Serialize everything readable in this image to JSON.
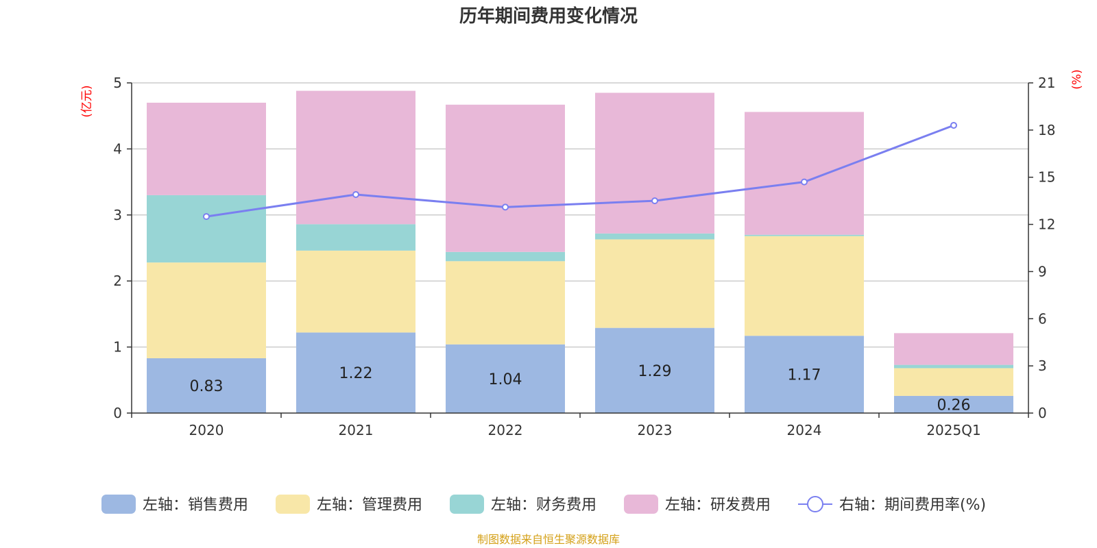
{
  "chart_data": {
    "type": "bar",
    "title": "历年期间费用变化情况",
    "categories": [
      "2020",
      "2021",
      "2022",
      "2023",
      "2024",
      "2025Q1"
    ],
    "left_axis": {
      "unit": "(亿元)",
      "ylim": [
        0,
        5
      ],
      "ticks": [
        "0",
        "1",
        "2",
        "3",
        "4",
        "5"
      ]
    },
    "right_axis": {
      "unit": "(%)",
      "ylim": [
        0,
        21
      ],
      "ticks": [
        "0",
        "3",
        "6",
        "9",
        "12",
        "15",
        "18",
        "21"
      ]
    },
    "grid": true,
    "legend_position": "bottom",
    "series": [
      {
        "name": "左轴：销售费用",
        "type": "bar",
        "stack": true,
        "axis": "left",
        "color": "#9db8e2",
        "values": [
          0.83,
          1.22,
          1.04,
          1.29,
          1.17,
          0.26
        ],
        "labels": [
          "0.83",
          "1.22",
          "1.04",
          "1.29",
          "1.17",
          "0.26"
        ]
      },
      {
        "name": "左轴：管理费用",
        "type": "bar",
        "stack": true,
        "axis": "left",
        "color": "#f8e7a8",
        "values": [
          1.45,
          1.24,
          1.26,
          1.34,
          1.51,
          0.42
        ]
      },
      {
        "name": "左轴：财务费用",
        "type": "bar",
        "stack": true,
        "axis": "left",
        "color": "#98d5d5",
        "values": [
          1.02,
          0.4,
          0.14,
          0.09,
          0.02,
          0.05
        ]
      },
      {
        "name": "左轴：研发费用",
        "type": "bar",
        "stack": true,
        "axis": "left",
        "color": "#e8b8d8",
        "values": [
          1.4,
          2.02,
          2.23,
          2.13,
          1.86,
          0.48
        ]
      },
      {
        "name": "右轴：期间费用率(%)",
        "type": "line",
        "axis": "right",
        "color": "#7a7ff0",
        "values": [
          12.5,
          13.9,
          13.1,
          13.5,
          14.7,
          18.3
        ]
      }
    ]
  },
  "footer": {
    "source": "制图数据来自恒生聚源数据库",
    "source_color": "#d4a017"
  }
}
